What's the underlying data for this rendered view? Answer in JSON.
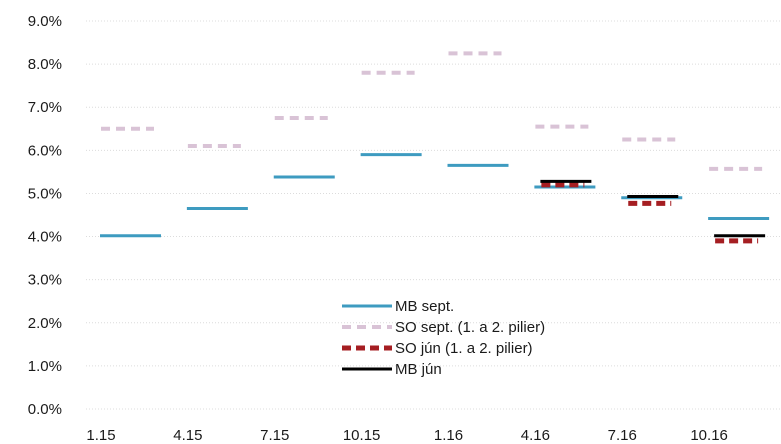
{
  "chart_data": {
    "type": "line",
    "grid": true,
    "legend_position": "bottom-center",
    "ylim": [
      0,
      9
    ],
    "y_ticks": [
      "0.0%",
      "1.0%",
      "2.0%",
      "3.0%",
      "4.0%",
      "5.0%",
      "6.0%",
      "7.0%",
      "8.0%",
      "9.0%"
    ],
    "categories": [
      "1.15",
      "4.15",
      "7.15",
      "10.15",
      "1.16",
      "4.16",
      "7.16",
      "10.16"
    ],
    "series": [
      {
        "name": "SO sept. (1. a 2. pilier)",
        "style": "dashed",
        "color": "#d9c3d6",
        "values": [
          6.5,
          6.1,
          6.75,
          7.8,
          8.25,
          6.55,
          6.25,
          5.57
        ]
      },
      {
        "name": "MB sept.",
        "style": "solid",
        "color": "#3e9bc0",
        "values": [
          4.02,
          4.65,
          5.38,
          5.9,
          5.65,
          5.15,
          4.9,
          4.42
        ]
      },
      {
        "name": "SO jún (1. a 2. pilier)",
        "style": "dashed",
        "color": "#a51e22",
        "values": [
          null,
          null,
          null,
          null,
          null,
          5.2,
          4.77,
          3.9
        ]
      },
      {
        "name": "MB jún",
        "style": "solid",
        "color": "#000000",
        "values": [
          null,
          null,
          null,
          null,
          null,
          5.28,
          4.93,
          4.02
        ]
      }
    ]
  }
}
